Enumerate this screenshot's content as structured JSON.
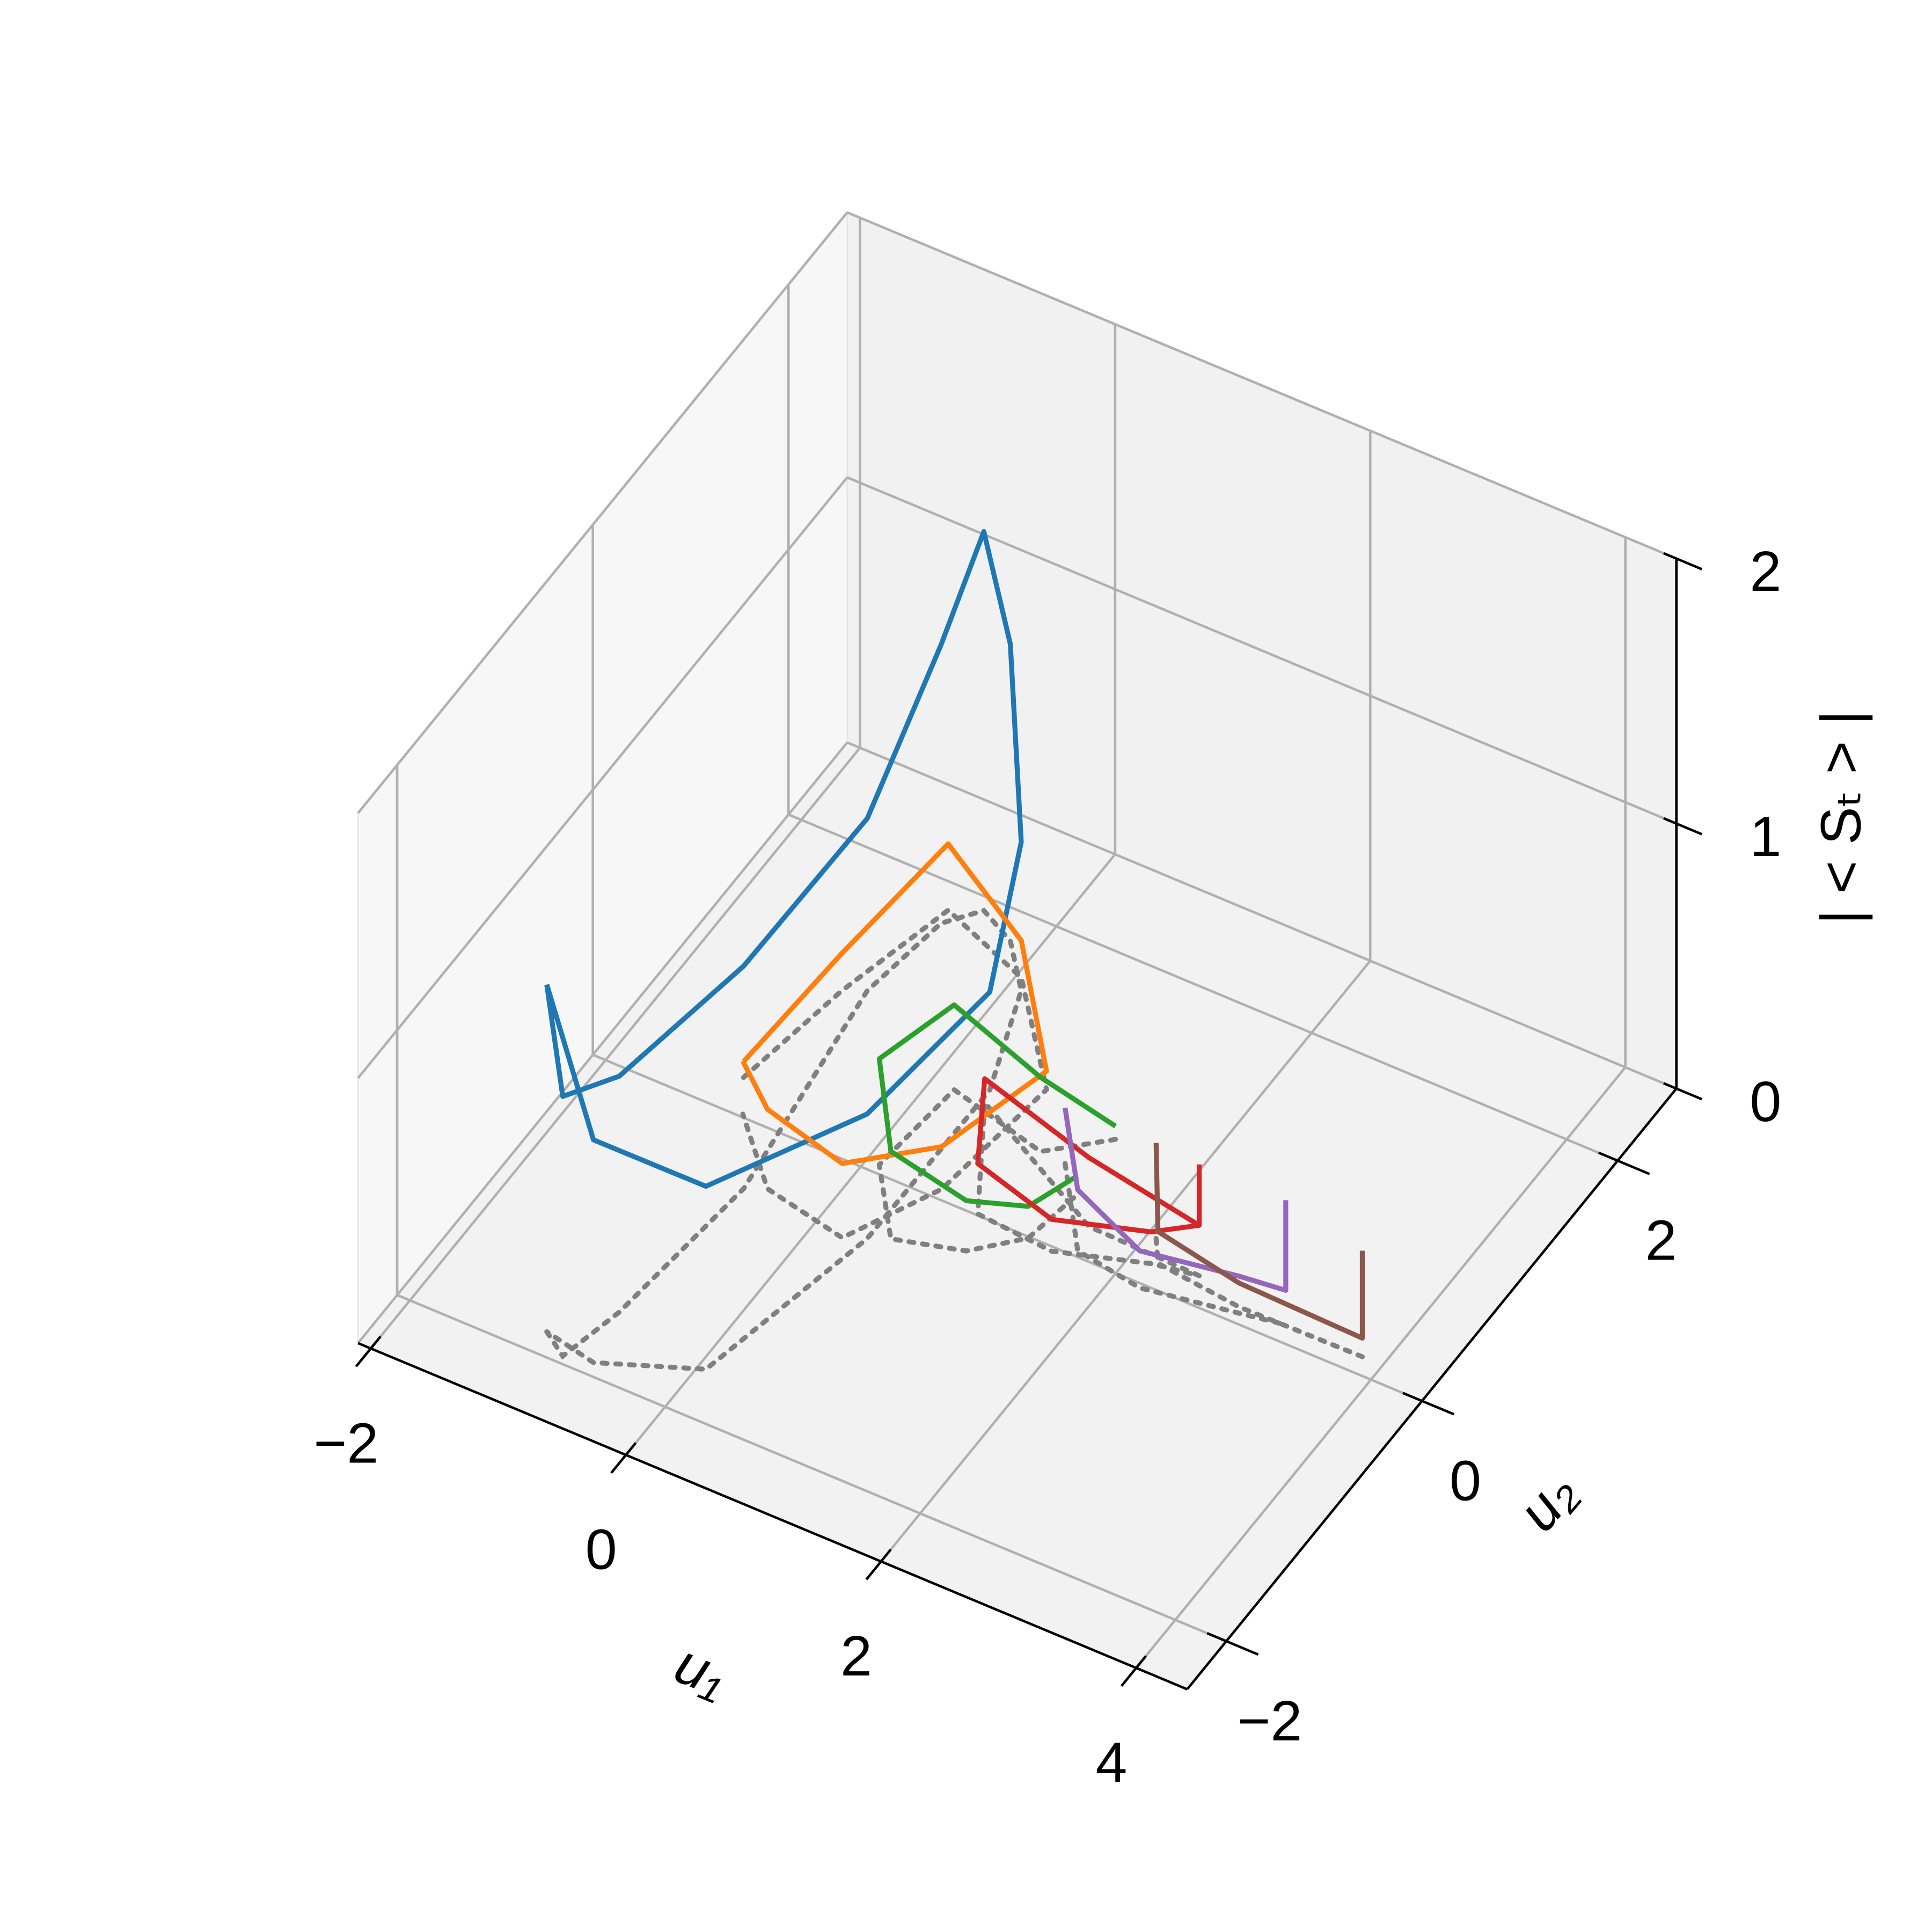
{
  "chart_data": {
    "type": "line3d",
    "xlabel": "u₁",
    "ylabel": "u₂",
    "zlabel": "| < Sₜ > |",
    "xlim": [
      -2.1,
      4.4
    ],
    "ylim": [
      -2.4,
      2.6
    ],
    "zlim": [
      0,
      2
    ],
    "xticks": [
      {
        "value": -2,
        "label": "−2"
      },
      0,
      2,
      4
    ],
    "yticks": [
      {
        "value": -2,
        "label": "−2"
      },
      0,
      2
    ],
    "zticks": [
      0,
      1,
      2
    ],
    "grid": true,
    "projection": true,
    "projection_color": "#808080",
    "series": [
      {
        "color": "#1f77b4",
        "x": [
          -1.05,
          -0.84,
          -0.72,
          -0.58,
          -0.8,
          -0.69,
          -0.5,
          -0.2,
          0.1,
          0.39,
          0.38,
          0.06,
          -0.63,
          -1.05
        ],
        "y": [
          -1.84,
          -1.95,
          -1.53,
          -0.44,
          1.11,
          1.72,
          1.91,
          1.79,
          1.51,
          0.81,
          -0.43,
          -1.66,
          -1.91,
          -1.84
        ],
        "z": [
          1.31,
          0.98,
          0.89,
          0.84,
          0.65,
          1.05,
          1.43,
          1.12,
          0.56,
          0.37,
          0.47,
          0.69,
          0.84,
          1.31
        ]
      },
      {
        "color": "#ff7f0e",
        "x": [
          -1.11,
          -0.95,
          -0.71,
          0.04,
          0.72,
          0.58,
          0.23,
          -0.44,
          -0.94
        ],
        "y": [
          0.25,
          1.04,
          1.82,
          1.59,
          0.96,
          0.07,
          -0.49,
          -0.38,
          0.02
        ],
        "z": [
          0.06,
          0.14,
          0.25,
          0.14,
          0.07,
          0.16,
          0.28,
          0.3,
          0.2
        ]
      },
      {
        "color": "#2ca02c",
        "x": [
          1.36,
          0.98,
          0.18,
          0.1,
          0.52,
          1.02,
          1.32,
          1.4
        ],
        "y": [
          0.83,
          0.56,
          0.72,
          0.06,
          -0.37,
          -0.25,
          -0.01,
          0.39
        ],
        "z": [
          0.05,
          0.28,
          0.32,
          0.4,
          0.33,
          0.19,
          0.12,
          0.07
        ]
      },
      {
        "color": "#d62728",
        "x": [
          2.5,
          2.5,
          1.62,
          0.42,
          0.91,
          1.52,
          2.16,
          2.5
        ],
        "y": [
          0.2,
          0.2,
          0.22,
          0.72,
          0.01,
          -0.03,
          0.15,
          0.2
        ],
        "z": [
          0.42,
          0.19,
          0.26,
          0.09,
          0.19,
          0.12,
          0.12,
          0.19
        ]
      },
      {
        "color": "#9467bd",
        "x": [
          1.18,
          1.67,
          2.21,
          2.91,
          3.24,
          3.24
        ],
        "y": [
          0.55,
          0.04,
          -0.03,
          0.07,
          0.12,
          0.12
        ],
        "z": [
          0.21,
          0.23,
          0.14,
          0.14,
          0.13,
          0.47
        ]
      },
      {
        "color": "#8c564b",
        "x": [
          2.07,
          2.2,
          2.88,
          3.84,
          3.84
        ],
        "y": [
          0.32,
          0.17,
          0.11,
          0.12,
          0.12
        ],
        "z": [
          0.36,
          0.12,
          0.09,
          0.07,
          0.4
        ]
      }
    ]
  }
}
